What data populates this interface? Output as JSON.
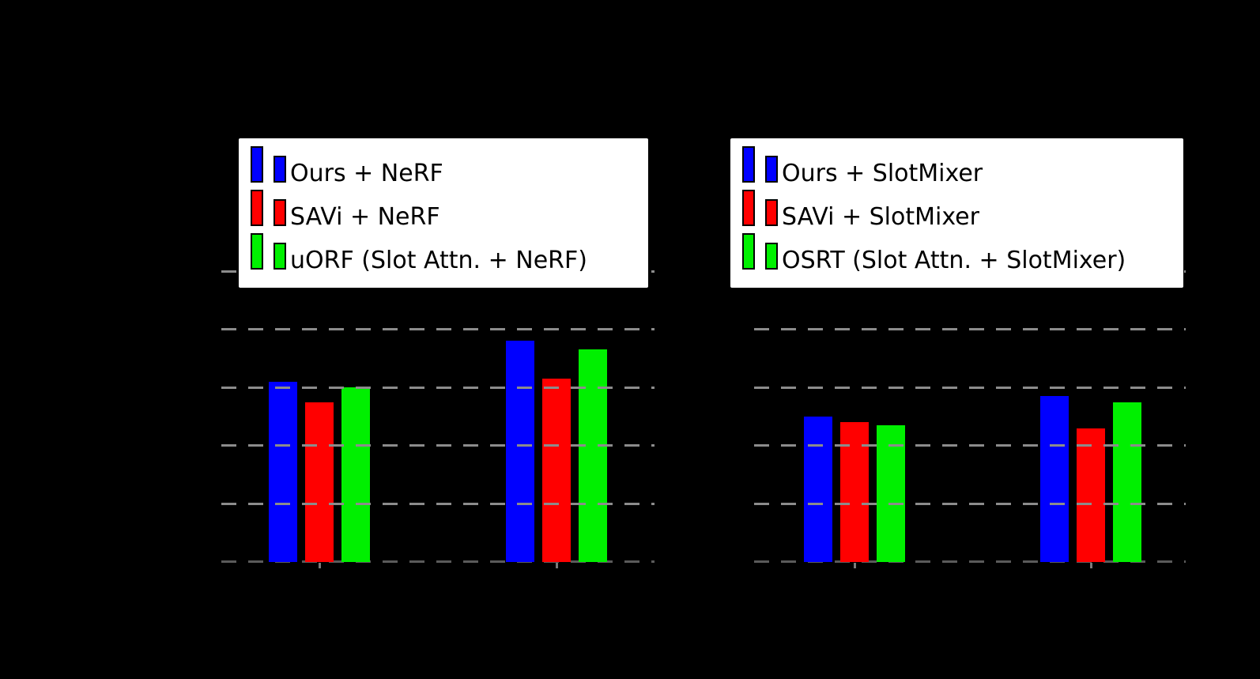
{
  "colors": {
    "background": "#000000",
    "bar_blue": "#0000ff",
    "bar_red": "#ff0000",
    "bar_green": "#00f000",
    "gridline": "#8c8c8c",
    "baseline": "#5a5a5a",
    "tick": "#7a7a7a",
    "legend_background": "#ffffff",
    "legend_text": "#000000"
  },
  "chart_data": [
    {
      "type": "bar",
      "panel": "left",
      "categories": [
        "",
        ""
      ],
      "series": [
        {
          "name": "Ours + NeRF",
          "color": "#0000ff",
          "values": [
            0.62,
            0.76
          ]
        },
        {
          "name": "SAVi + NeRF",
          "color": "#ff0000",
          "values": [
            0.55,
            0.63
          ]
        },
        {
          "name": "uORF (Slot Attn. + NeRF)",
          "color": "#00f000",
          "values": [
            0.6,
            0.73
          ]
        }
      ],
      "ylim": [
        0,
        1.0
      ],
      "gridlines": [
        0.2,
        0.4,
        0.6,
        0.8,
        1.0
      ],
      "grid_style": "dashed",
      "legend_position": "upper center",
      "axis_tick_labels_visible": false,
      "title": "",
      "xlabel": "",
      "ylabel": ""
    },
    {
      "type": "bar",
      "panel": "right",
      "categories": [
        "",
        ""
      ],
      "series": [
        {
          "name": "Ours + SlotMixer",
          "color": "#0000ff",
          "values": [
            0.5,
            0.57
          ]
        },
        {
          "name": "SAVi + SlotMixer",
          "color": "#ff0000",
          "values": [
            0.48,
            0.46
          ]
        },
        {
          "name": "OSRT (Slot Attn. + SlotMixer)",
          "color": "#00f000",
          "values": [
            0.47,
            0.55
          ]
        }
      ],
      "ylim": [
        0,
        1.0
      ],
      "gridlines": [
        0.2,
        0.4,
        0.6,
        0.8,
        1.0
      ],
      "grid_style": "dashed",
      "legend_position": "upper center",
      "axis_tick_labels_visible": false,
      "title": "",
      "xlabel": "",
      "ylabel": ""
    }
  ]
}
